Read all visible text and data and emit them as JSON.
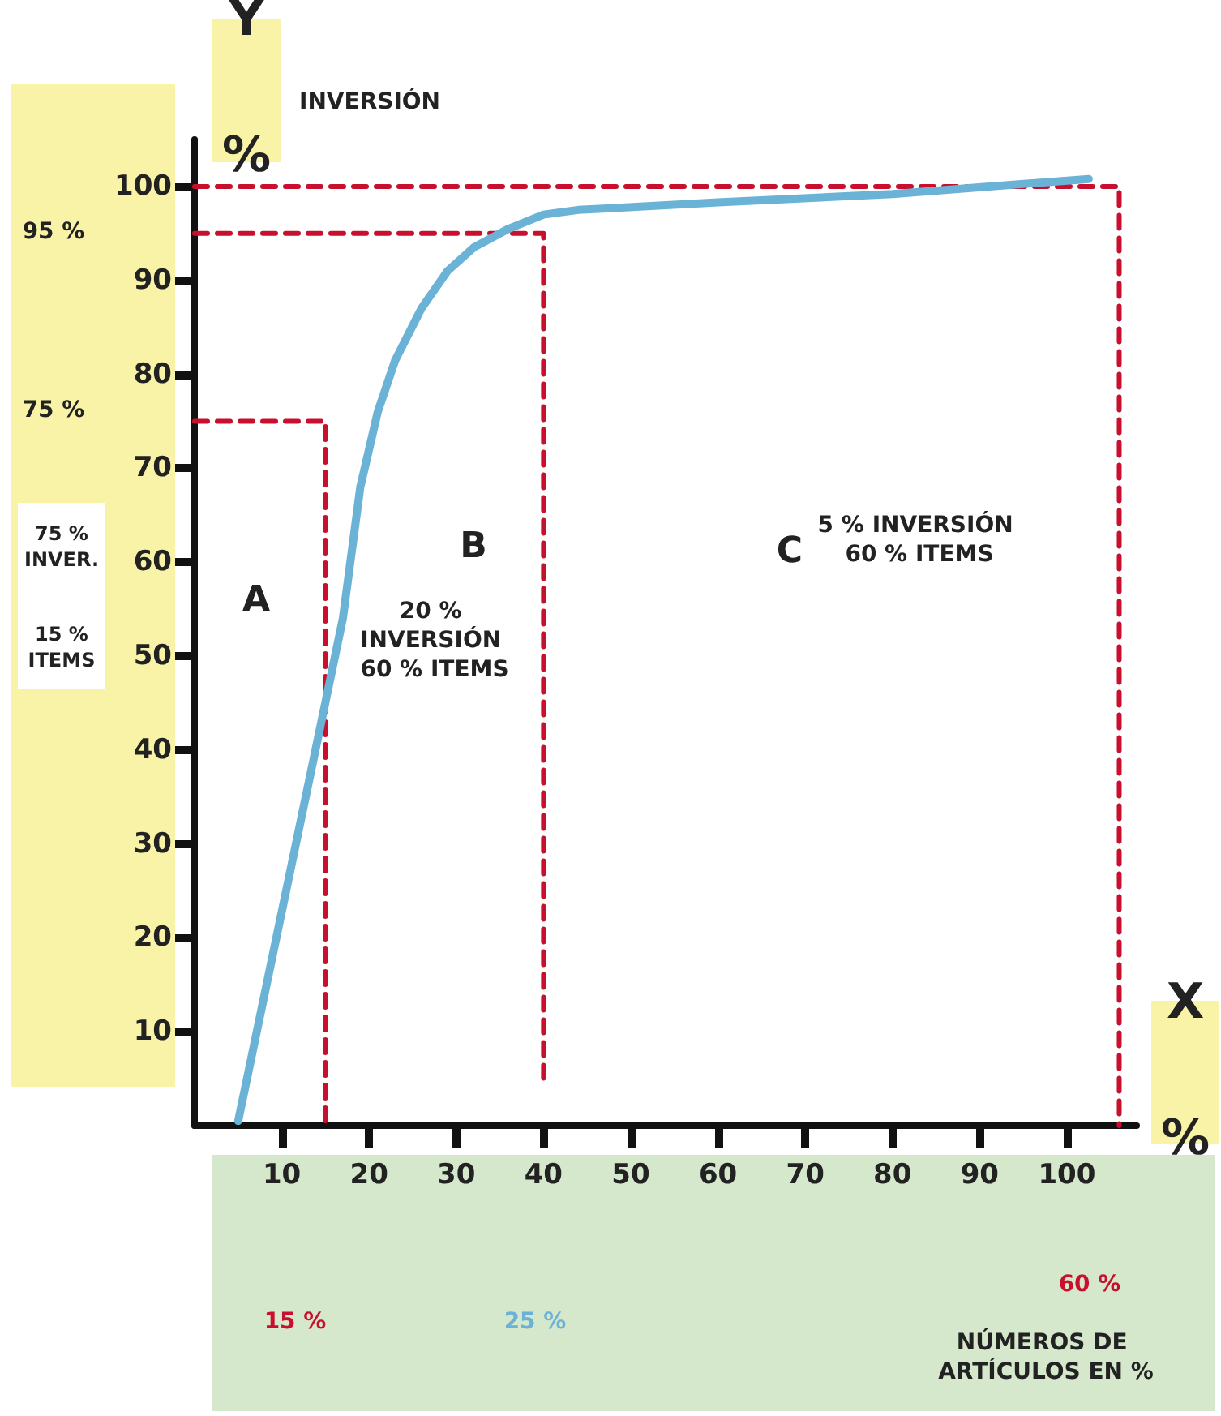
{
  "chart_data": {
    "type": "line",
    "ylabel": "INVERSIÓN",
    "xlim": [
      0,
      108
    ],
    "ylim": [
      0,
      105
    ],
    "xticks": [
      10,
      20,
      30,
      40,
      50,
      60,
      70,
      80,
      90,
      100
    ],
    "yticks": [
      10,
      20,
      30,
      40,
      50,
      60,
      70,
      80,
      90,
      100
    ],
    "grid": false,
    "marker": "none",
    "series": [
      {
        "color": "#6bb3d6",
        "line_style": "solid",
        "x": [
          5,
          17,
          19,
          21,
          23,
          26,
          29,
          32,
          36,
          40,
          44,
          60,
          80,
          102.5
        ],
        "values": [
          0.5,
          54,
          68,
          76,
          81.5,
          87,
          91,
          93.5,
          95.5,
          97,
          97.5,
          98.3,
          99.2,
          100.8
        ]
      },
      {
        "color": "#c8102e",
        "line_style": "dashed",
        "x": [
          0,
          15,
          15
        ],
        "values": [
          75,
          75,
          0
        ]
      },
      {
        "color": "#c8102e",
        "line_style": "dashed",
        "x": [
          0,
          40,
          40
        ],
        "values": [
          95,
          95,
          5
        ]
      },
      {
        "color": "#c8102e",
        "line_style": "dashed",
        "x": [
          0,
          106,
          106
        ],
        "values": [
          100,
          100,
          0
        ]
      }
    ],
    "annotations": [
      "Y %",
      "X %",
      "75 % INVER.",
      "15 % ITEMS",
      "A",
      "B",
      "C",
      "20 % INVERSIÓN 60 % ITEMS",
      "5 % INVERSIÓN 60 % ITEMS",
      "95 %",
      "75 %",
      "15 %",
      "25 %",
      "60 %",
      "NÚMEROS DE ARTÍCULOS EN %"
    ]
  }
}
